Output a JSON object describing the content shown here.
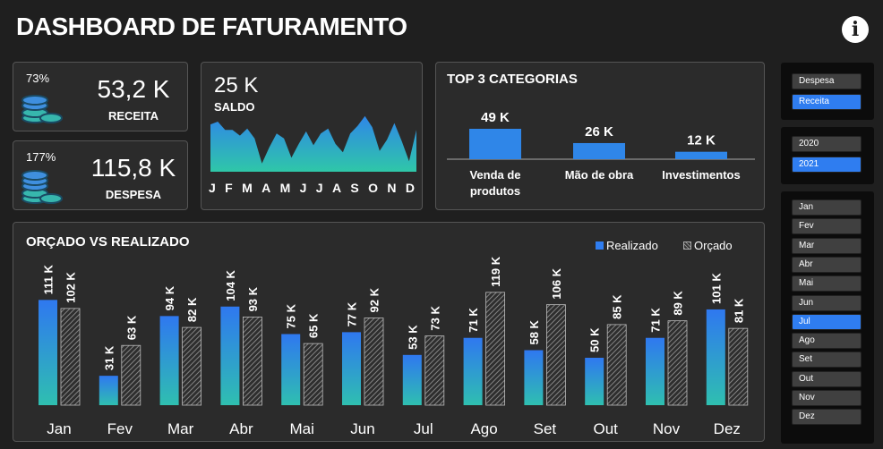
{
  "header": {
    "title": "DASHBOARD DE FATURAMENTO",
    "info_label": "i"
  },
  "kpis": {
    "receita": {
      "pct": "73%",
      "value": "53,2 K",
      "label": "RECEITA"
    },
    "despesa": {
      "pct": "177%",
      "value": "115,8 K",
      "label": "DESPESA"
    }
  },
  "saldo": {
    "value": "25 K",
    "label": "SALDO",
    "months": [
      "J",
      "F",
      "M",
      "A",
      "M",
      "J",
      "J",
      "A",
      "S",
      "O",
      "N",
      "D"
    ],
    "series": [
      68,
      72,
      60,
      60,
      52,
      62,
      48,
      12,
      35,
      55,
      48,
      20,
      40,
      58,
      38,
      55,
      62,
      40,
      28,
      55,
      66,
      80,
      64,
      30,
      46,
      70,
      44,
      15,
      60
    ]
  },
  "top3": {
    "title": "TOP 3 CATEGORIAS",
    "chart_data": {
      "type": "bar",
      "categories": [
        "Venda de produtos",
        "Mão de obra",
        "Investimentos"
      ],
      "values": [
        49,
        26,
        12
      ],
      "labels": [
        "49 K",
        "26 K",
        "12 K"
      ],
      "category_lines": [
        [
          "Venda de",
          "produtos"
        ],
        [
          "Mão de obra"
        ],
        [
          "Investimentos"
        ]
      ]
    }
  },
  "orcado": {
    "title": "ORÇADO VS REALIZADO",
    "legend": {
      "realizado": "Realizado",
      "orcado": "Orçado"
    },
    "chart_data": {
      "type": "bar",
      "categories": [
        "Jan",
        "Fev",
        "Mar",
        "Abr",
        "Mai",
        "Jun",
        "Jul",
        "Ago",
        "Set",
        "Out",
        "Nov",
        "Dez"
      ],
      "ylim": [
        0,
        130
      ],
      "series": [
        {
          "name": "Realizado",
          "values": [
            111,
            31,
            94,
            104,
            75,
            77,
            53,
            71,
            58,
            50,
            71,
            101
          ],
          "labels": [
            "111 K",
            "31 K",
            "94 K",
            "104 K",
            "75 K",
            "77 K",
            "53 K",
            "71 K",
            "58 K",
            "50 K",
            "71 K",
            "101 K"
          ]
        },
        {
          "name": "Orçado",
          "values": [
            102,
            63,
            82,
            93,
            65,
            92,
            73,
            119,
            106,
            85,
            89,
            81
          ],
          "labels": [
            "102 K",
            "63 K",
            "82 K",
            "93 K",
            "65 K",
            "92 K",
            "73 K",
            "119 K",
            "106 K",
            "85 K",
            "89 K",
            "81 K"
          ]
        }
      ]
    }
  },
  "slicers": {
    "tipo": {
      "items": [
        {
          "label": "Despesa",
          "selected": false
        },
        {
          "label": "Receita",
          "selected": true
        }
      ]
    },
    "ano": {
      "items": [
        {
          "label": "2020",
          "selected": false
        },
        {
          "label": "2021",
          "selected": true
        }
      ]
    },
    "mes": {
      "items": [
        {
          "label": "Jan",
          "selected": false
        },
        {
          "label": "Fev",
          "selected": false
        },
        {
          "label": "Mar",
          "selected": false
        },
        {
          "label": "Abr",
          "selected": false
        },
        {
          "label": "Mai",
          "selected": false
        },
        {
          "label": "Jun",
          "selected": false
        },
        {
          "label": "Jul",
          "selected": true
        },
        {
          "label": "Ago",
          "selected": false
        },
        {
          "label": "Set",
          "selected": false
        },
        {
          "label": "Out",
          "selected": false
        },
        {
          "label": "Nov",
          "selected": false
        },
        {
          "label": "Dez",
          "selected": false
        }
      ]
    }
  }
}
